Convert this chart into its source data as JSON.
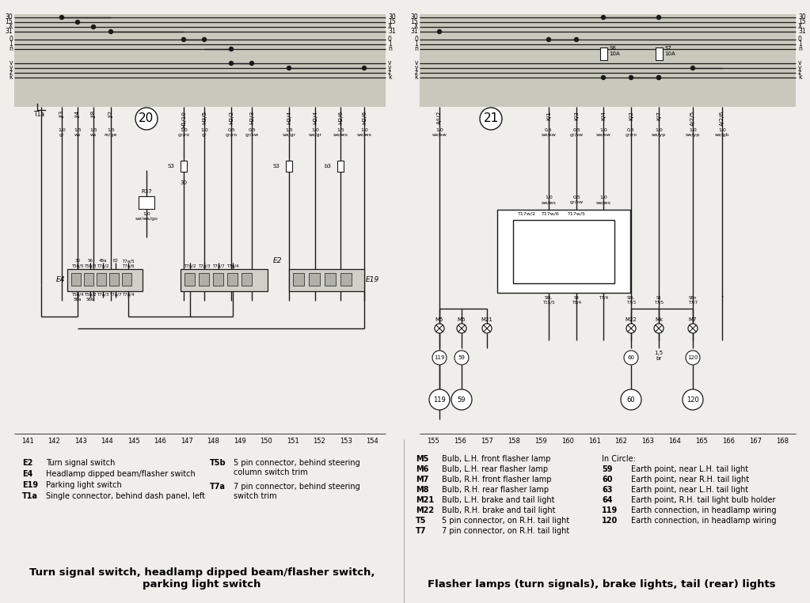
{
  "bg_color": "#f0eeea",
  "diagram_bg": "#c8c8bc",
  "line_color": "#1a1a1a",
  "title_left": "Turn signal switch, headlamp dipped beam/flasher switch,\nparking light switch",
  "title_right": "Flasher lamps (turn signals), brake lights, tail (rear) lights",
  "legend_left": [
    [
      "E2",
      "Turn signal switch"
    ],
    [
      "E4",
      "Headlamp dipped beam/flasher switch"
    ],
    [
      "E19",
      "Parking light switch"
    ],
    [
      "T1a",
      "Single connector, behind dash panel, left"
    ]
  ],
  "legend_left_col2_codes": [
    "T5b",
    "T7a"
  ],
  "legend_left_col2_descs": [
    "5 pin connector, behind steering\ncolumn switch trim",
    "7 pin connector, behind steering\nswitch trim"
  ],
  "legend_right_col1": [
    [
      "M5",
      "Bulb, L.H. front flasher lamp"
    ],
    [
      "M6",
      "Bulb, L.H. rear flasher lamp"
    ],
    [
      "M7",
      "Bulb, R.H. front flasher lamp"
    ],
    [
      "M8",
      "Bulb, R.H. rear flasher lamp"
    ],
    [
      "M21",
      "Bulb, L.H. brake and tail light"
    ],
    [
      "M22",
      "Bulb, R.H. brake and tail light"
    ],
    [
      "T5",
      "5 pin connector, on R.H. tail light"
    ],
    [
      "T7",
      "7 pin connector, on R.H. tail light"
    ]
  ],
  "legend_right_col2": [
    [
      "In Circle:",
      ""
    ],
    [
      "59",
      "Earth point, near L.H. tail light"
    ],
    [
      "60",
      "Earth point, near R.H. tail light"
    ],
    [
      "63",
      "Earth point, near L.H. tail light"
    ],
    [
      "64",
      "Earth point, R.H. tail light bulb holder"
    ],
    [
      "119",
      "Earth connection, in headlamp wiring"
    ],
    [
      "120",
      "Earth connection, in headlamp wiring"
    ]
  ]
}
